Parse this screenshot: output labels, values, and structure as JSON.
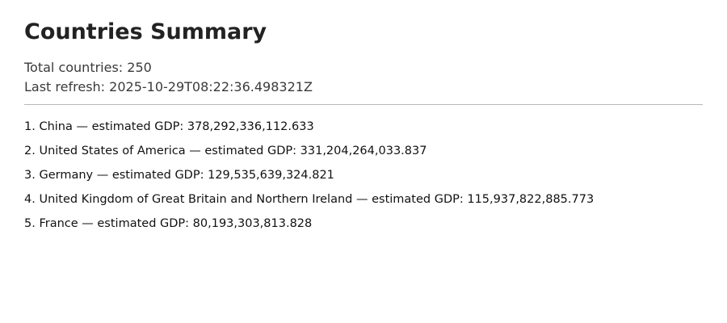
{
  "page": {
    "title": "Countries Summary",
    "total_label": "Total countries:",
    "total_value": "250",
    "refresh_label": "Last refresh:",
    "refresh_value": "2025-10-29T08:22:36.498321Z"
  },
  "list": {
    "items": [
      {
        "rank": "1.",
        "country": "China",
        "separator": "—",
        "label": "estimated GDP:",
        "value": "378,292,336,112.633"
      },
      {
        "rank": "2.",
        "country": "United States of America",
        "separator": "—",
        "label": "estimated GDP:",
        "value": "331,204,264,033.837"
      },
      {
        "rank": "3.",
        "country": "Germany",
        "separator": "—",
        "label": "estimated GDP:",
        "value": "129,535,639,324.821"
      },
      {
        "rank": "4.",
        "country": "United Kingdom of Great Britain and Northern Ireland",
        "separator": "—",
        "label": "estimated GDP:",
        "value": "115,937,822,885.773"
      },
      {
        "rank": "5.",
        "country": "France",
        "separator": "—",
        "label": "estimated GDP:",
        "value": "80,193,303,813.828"
      }
    ]
  }
}
